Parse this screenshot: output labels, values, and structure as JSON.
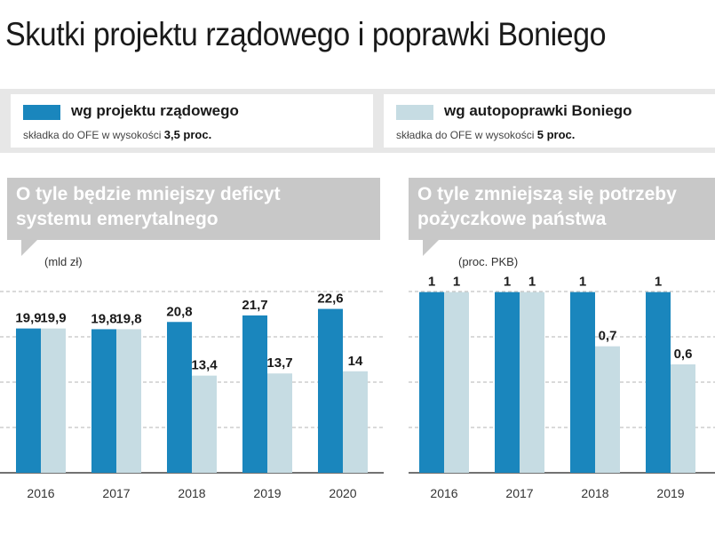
{
  "title": "Skutki projektu rządowego i poprawki Boniego",
  "legend": {
    "items": [
      {
        "label": "wg projektu rządowego",
        "sub_prefix": "składka do OFE w wysokości",
        "sub_value": "3,5 proc.",
        "color": "#1a86bd"
      },
      {
        "label": "wg autopoprawki Boniego",
        "sub_prefix": "składka do OFE w wysokości",
        "sub_value": "5 proc.",
        "color": "#c6dce3"
      }
    ]
  },
  "chart_data": [
    {
      "type": "bar",
      "title": "O tyle będzie mniejszy deficyt\nsystemu emerytalnego",
      "unit": "(mld zł)",
      "categories": [
        "2016",
        "2017",
        "2018",
        "2019",
        "2020"
      ],
      "series": [
        {
          "name": "wg projektu rządowego",
          "values": [
            19.9,
            19.8,
            20.8,
            21.7,
            22.6
          ],
          "labels": [
            "19,9",
            "19,8",
            "20,8",
            "21,7",
            "22,6"
          ]
        },
        {
          "name": "wg autopoprawki Boniego",
          "values": [
            19.9,
            19.8,
            13.4,
            13.7,
            14
          ],
          "labels": [
            "19,9",
            "19,8",
            "13,4",
            "13,7",
            "14"
          ]
        }
      ],
      "ylim": [
        0,
        25
      ],
      "grid": true
    },
    {
      "type": "bar",
      "title": "O tyle zmniejszą się potrzeby\npożyczkowe państwa",
      "unit": "(proc. PKB)",
      "categories": [
        "2016",
        "2017",
        "2018",
        "2019"
      ],
      "series": [
        {
          "name": "wg projektu rządowego",
          "values": [
            1,
            1,
            1,
            1
          ],
          "labels": [
            "1",
            "1",
            "1",
            "1"
          ]
        },
        {
          "name": "wg autopoprawki Boniego",
          "values": [
            1,
            1,
            0.7,
            0.6
          ],
          "labels": [
            "1",
            "1",
            "0,7",
            "0,6"
          ]
        }
      ],
      "ylim": [
        0,
        1.2
      ],
      "grid": true
    }
  ]
}
